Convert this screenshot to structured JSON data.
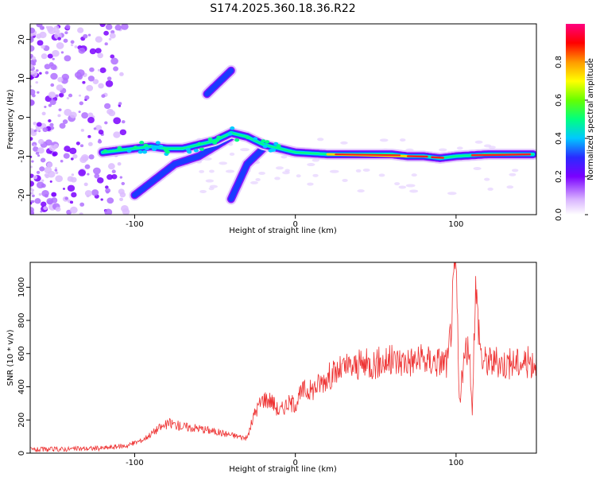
{
  "title": "S174.2025.360.18.36.R22",
  "chart_data": [
    {
      "type": "heatmap",
      "xlabel": "Height of straight line (km)",
      "ylabel": "Frequency (Hz)",
      "xlim": [
        -165,
        150
      ],
      "ylim": [
        -25,
        24
      ],
      "xticks": [
        -100,
        0,
        100
      ],
      "yticks": [
        -20,
        -10,
        0,
        10,
        20
      ],
      "colorbar": {
        "label": "Normalized spectral amplitude",
        "range": [
          0,
          1
        ],
        "ticks": [
          "0.0",
          "0.2",
          "0.4",
          "0.6",
          "0.8"
        ]
      },
      "ridge": {
        "description_free": true,
        "points": [
          [
            -120,
            -9
          ],
          [
            -110,
            -8.5
          ],
          [
            -100,
            -8
          ],
          [
            -90,
            -7.5
          ],
          [
            -80,
            -8
          ],
          [
            -70,
            -8
          ],
          [
            -60,
            -7
          ],
          [
            -50,
            -6
          ],
          [
            -40,
            -4
          ],
          [
            -30,
            -5
          ],
          [
            -20,
            -7
          ],
          [
            -10,
            -8
          ],
          [
            0,
            -9
          ],
          [
            20,
            -9.5
          ],
          [
            40,
            -9.5
          ],
          [
            60,
            -9.5
          ],
          [
            70,
            -10
          ],
          [
            80,
            -10
          ],
          [
            90,
            -10.5
          ],
          [
            100,
            -10
          ],
          [
            120,
            -9.5
          ],
          [
            148,
            -9.5
          ]
        ]
      },
      "branches": [
        {
          "points": [
            [
              -100,
              -20
            ],
            [
              -75,
              -12
            ],
            [
              -60,
              -10
            ],
            [
              -40,
              -5
            ]
          ]
        },
        {
          "points": [
            [
              -40,
              -21
            ],
            [
              -30,
              -12
            ],
            [
              -20,
              -8
            ]
          ]
        },
        {
          "points": [
            [
              -55,
              6
            ],
            [
              -45,
              10
            ],
            [
              -40,
              12
            ]
          ]
        }
      ]
    },
    {
      "type": "line",
      "xlabel": "Height of straight line (km)",
      "ylabel": "SNR (10 * v/v)",
      "xlim": [
        -165,
        150
      ],
      "ylim": [
        0,
        1150
      ],
      "xticks": [
        -100,
        0,
        100
      ],
      "yticks": [
        0,
        200,
        400,
        600,
        800,
        1000
      ],
      "series": [
        {
          "name": "SNR",
          "color": "#ee3333",
          "points": [
            [
              -165,
              20
            ],
            [
              -140,
              25
            ],
            [
              -120,
              30
            ],
            [
              -105,
              45
            ],
            [
              -95,
              80
            ],
            [
              -85,
              150
            ],
            [
              -78,
              180
            ],
            [
              -70,
              160
            ],
            [
              -60,
              150
            ],
            [
              -50,
              130
            ],
            [
              -40,
              110
            ],
            [
              -30,
              90
            ],
            [
              -25,
              250
            ],
            [
              -20,
              330
            ],
            [
              -15,
              320
            ],
            [
              -10,
              250
            ],
            [
              -5,
              300
            ],
            [
              0,
              300
            ],
            [
              5,
              380
            ],
            [
              10,
              380
            ],
            [
              15,
              420
            ],
            [
              20,
              460
            ],
            [
              30,
              510
            ],
            [
              40,
              530
            ],
            [
              60,
              555
            ],
            [
              80,
              560
            ],
            [
              95,
              550
            ],
            [
              100,
              1150
            ],
            [
              102,
              300
            ],
            [
              105,
              560
            ],
            [
              108,
              650
            ],
            [
              110,
              240
            ],
            [
              112,
              1000
            ],
            [
              116,
              560
            ],
            [
              130,
              540
            ],
            [
              150,
              550
            ]
          ]
        }
      ]
    }
  ]
}
